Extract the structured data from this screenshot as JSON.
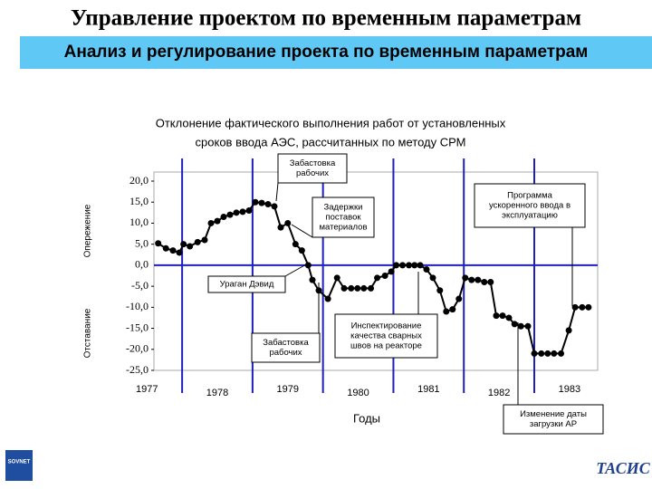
{
  "header": {
    "title": "Управление проектом по временным параметрам",
    "subtitle": "Анализ и регулирование проекта по временным параметрам"
  },
  "logos": {
    "left": "SOVNET",
    "right": "ТАСИС"
  },
  "chart_data": {
    "type": "line",
    "title_lines": [
      "Отклонение фактического выполнения работ от установленных",
      "сроков ввода АЭС, рассчитанных по методу СРМ"
    ],
    "x_label": "Годы",
    "y_labels": [
      "Опережение",
      "Отставание"
    ],
    "xlim": [
      1977.6,
      1983.9
    ],
    "ylim": [
      -25,
      20
    ],
    "xticks": [
      {
        "value": 1977.5,
        "label": "1977"
      },
      {
        "value": 1978.5,
        "label": "1978"
      },
      {
        "value": 1979.5,
        "label": "1979"
      },
      {
        "value": 1980.5,
        "label": "1980"
      },
      {
        "value": 1981.5,
        "label": "1981"
      },
      {
        "value": 1982.5,
        "label": "1982"
      },
      {
        "value": 1983.5,
        "label": "1983"
      }
    ],
    "year_lines": [
      1978,
      1979,
      1980,
      1981,
      1982,
      1983
    ],
    "yticks": [
      {
        "value": 20,
        "label": "20,0"
      },
      {
        "value": 15,
        "label": "15,0"
      },
      {
        "value": 10,
        "label": "10,0"
      },
      {
        "value": 5,
        "label": "5,0"
      },
      {
        "value": 0,
        "label": "0,0"
      },
      {
        "value": -5,
        "label": "-5,0"
      },
      {
        "value": -10,
        "label": "-10,0"
      },
      {
        "value": -15,
        "label": "-15,0"
      },
      {
        "value": -20,
        "label": "-20,0"
      },
      {
        "value": -25,
        "label": "-25,0"
      }
    ],
    "color": "#000000",
    "axis_color": "#1f1fbf",
    "x": [
      1977.66,
      1977.77,
      1977.87,
      1977.96,
      1978.02,
      1978.11,
      1978.22,
      1978.32,
      1978.41,
      1978.5,
      1978.59,
      1978.68,
      1978.77,
      1978.86,
      1978.95,
      1979.04,
      1979.13,
      1979.22,
      1979.31,
      1979.4,
      1979.5,
      1979.61,
      1979.7,
      1979.79,
      1979.85,
      1979.94,
      1980.07,
      1980.2,
      1980.3,
      1980.4,
      1980.49,
      1980.58,
      1980.68,
      1980.77,
      1980.88,
      1980.97,
      1981.04,
      1981.13,
      1981.22,
      1981.3,
      1981.38,
      1981.47,
      1981.56,
      1981.66,
      1981.75,
      1981.84,
      1981.93,
      1982.02,
      1982.11,
      1982.2,
      1982.29,
      1982.38,
      1982.46,
      1982.55,
      1982.64,
      1982.72,
      1982.81,
      1982.91,
      1983.0,
      1983.1,
      1983.19,
      1983.28,
      1983.38,
      1983.49,
      1983.58,
      1983.68,
      1983.77
    ],
    "values": [
      5.2,
      4,
      3.5,
      3,
      5,
      4.5,
      5.5,
      6,
      10,
      10.5,
      11.5,
      12,
      12.5,
      12.7,
      13,
      15,
      14.8,
      14.5,
      14,
      9,
      10,
      5,
      3.5,
      0,
      -3.5,
      -6,
      -8,
      -3,
      -5.5,
      -5.5,
      -5.5,
      -5.5,
      -5.5,
      -3,
      -2.5,
      -1.5,
      0,
      0,
      0,
      0,
      0,
      -1,
      -3,
      -6,
      -11,
      -10.5,
      -8,
      -3,
      -3.5,
      -3.5,
      -4,
      -4,
      -12,
      -12,
      -12.5,
      -14,
      -14.5,
      -14.5,
      -21,
      -21,
      -21,
      -21,
      -21,
      -15.5,
      -10,
      -10,
      -10
    ],
    "annotations": [
      {
        "lines": [
          "Забастовка",
          "рабочих"
        ]
      },
      {
        "lines": [
          "Задержки",
          "поставок",
          "материалов"
        ]
      },
      {
        "lines": [
          "Ураган Дэвид"
        ]
      },
      {
        "lines": [
          "Забастовка",
          "рабочих"
        ]
      },
      {
        "lines": [
          "Инспектирование",
          "качества сварных",
          "швов на реакторе"
        ]
      },
      {
        "lines": [
          "Программа",
          "ускоренного ввода в",
          "эксплуатацию"
        ]
      },
      {
        "lines": [
          "Изменение даты",
          "загрузки АР"
        ]
      }
    ]
  }
}
